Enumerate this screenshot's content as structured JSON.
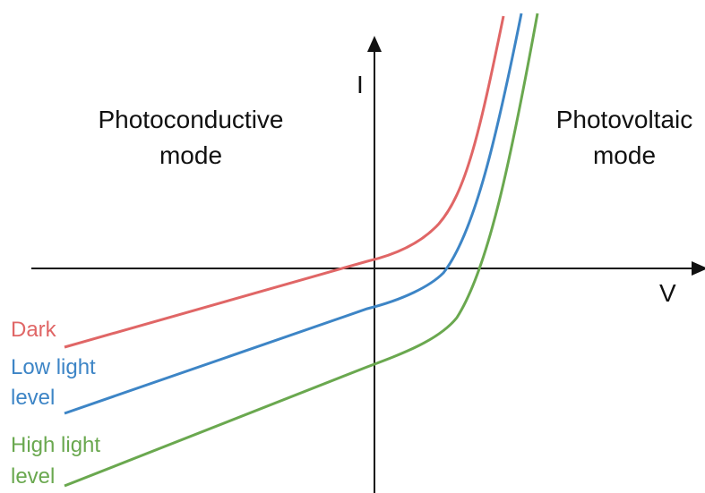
{
  "axes": {
    "y_label": "I",
    "x_label": "V"
  },
  "regions": [
    {
      "lines": [
        "Photoconductive",
        "mode"
      ]
    },
    {
      "lines": [
        "Photovoltaic",
        "mode"
      ]
    }
  ],
  "curves": [
    {
      "label_lines": [
        "Dark"
      ]
    },
    {
      "label_lines": [
        "Low light",
        "level"
      ]
    },
    {
      "label_lines": [
        "High light",
        "level"
      ]
    }
  ]
}
